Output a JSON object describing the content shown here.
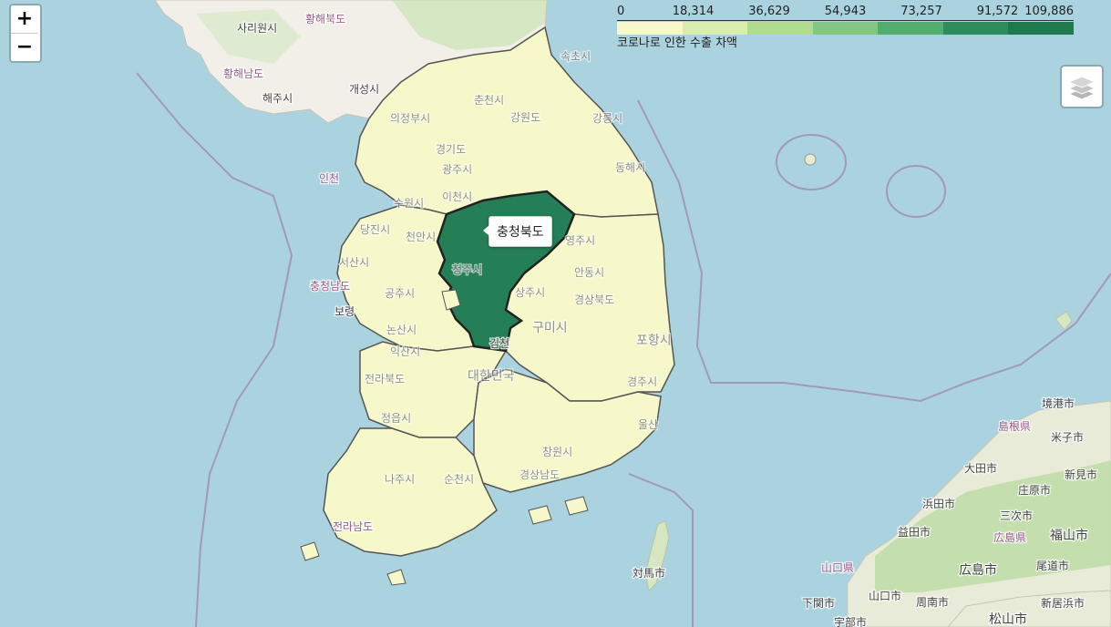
{
  "colors": {
    "sea": "#aad3df",
    "land_base": "#f2efe9",
    "choropleth_low": "#f7f8ca",
    "choropleth_high": "#1e7a4e",
    "region_border": "#555555",
    "maritime_border": "#a07fa8"
  },
  "zoom": {
    "in_label": "+",
    "out_label": "−"
  },
  "layers_icon": "layers-icon",
  "legend": {
    "ticks": [
      "0",
      "18,314",
      "36,629",
      "54,943",
      "73,257",
      "91,572",
      "109,886"
    ],
    "swatch_colors": [
      "#f7f8ca",
      "#d7eeb0",
      "#b0dc91",
      "#82c882",
      "#52ad6f",
      "#2e8d5d",
      "#1e7a4e"
    ],
    "caption": "코로나로 인한 수출 차액"
  },
  "tooltip": {
    "text": "충청북도"
  },
  "map_labels": {
    "n1": "황해북도",
    "n2": "사리원시",
    "n3": "황해남도",
    "n4": "해주시",
    "n5": "개성시",
    "k1": "속초시",
    "k2": "춘천시",
    "k3": "의정부시",
    "k4": "강원도",
    "k5": "강릉시",
    "k6": "경기도",
    "k7": "광주시",
    "k8": "동해시",
    "k9": "인천",
    "k10": "수원시",
    "k11": "이천시",
    "k12": "당진시",
    "k13": "천안시",
    "k14": "영주시",
    "k15": "서산시",
    "k16": "충청남도",
    "k17": "청주시",
    "k18": "안동시",
    "k19": "공주시",
    "k20": "상주시",
    "k21": "경상북도",
    "k22": "보령",
    "k23": "논산시",
    "k24": "구미시",
    "k25": "김천",
    "k26": "포항시",
    "k27": "익산시",
    "k28": "대한민국",
    "k29": "경주시",
    "k30": "전라북도",
    "k31": "정읍시",
    "k32": "울산",
    "k33": "창원시",
    "k34": "나주시",
    "k35": "순천시",
    "k36": "경상남도",
    "k37": "전라남도",
    "j1": "境港市",
    "j2": "島根県",
    "j3": "米子市",
    "j4": "大田市",
    "j5": "庄原市",
    "j6": "新見市",
    "j7": "浜田市",
    "j8": "三次市",
    "j9": "益田市",
    "j10": "広島県",
    "j11": "福山市",
    "j12": "山口県",
    "j13": "広島市",
    "j14": "尾道市",
    "j15": "対馬市",
    "j16": "下関市",
    "j17": "山口市",
    "j18": "周南市",
    "j19": "新居浜市",
    "j20": "松山市",
    "j21": "宇部市"
  }
}
